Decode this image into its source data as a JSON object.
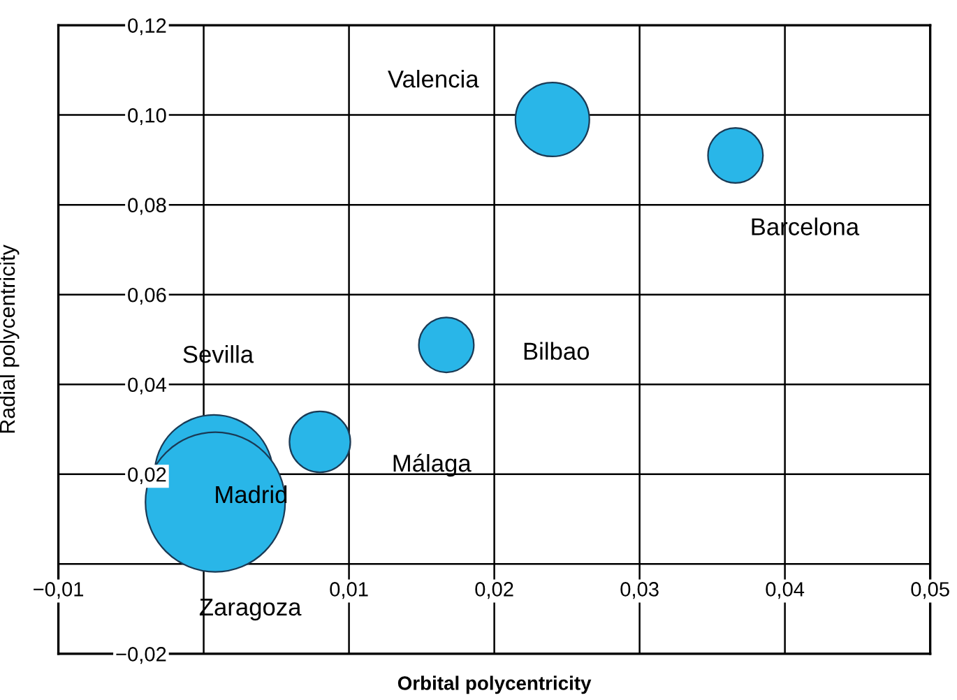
{
  "chart_data": {
    "type": "bubble",
    "xlabel": "Orbital polycentricity",
    "ylabel": "Radial polycentricity",
    "x": [
      0.0007,
      0.0008,
      0.024,
      0.0366,
      0.0167,
      0.008
    ],
    "values": [
      0.02,
      0.0138,
      0.099,
      0.091,
      0.0488,
      0.0272
    ],
    "sizes": [
      0.72,
      1,
      0.28,
      0.155,
      0.155,
      0.19
    ],
    "color": "#29b6e8",
    "xlim": [
      -0.01,
      0.05
    ],
    "xticks": [
      {
        "value": -0.01,
        "label": "−0,01"
      },
      {
        "value": 0,
        "label": null
      },
      {
        "value": 0.01,
        "label": "0,01"
      },
      {
        "value": 0.02,
        "label": "0,02"
      },
      {
        "value": 0.03,
        "label": "0,03"
      },
      {
        "value": 0.04,
        "label": "0,04"
      },
      {
        "value": 0.05,
        "label": "0,05"
      }
    ],
    "ylim": [
      -0.02,
      0.12
    ],
    "yticks": [
      {
        "value": -0.02,
        "label": "−0,02"
      },
      {
        "value": 0,
        "label": null
      },
      {
        "value": 0.02,
        "label": "0,02"
      },
      {
        "value": 0.04,
        "label": "0,04"
      },
      {
        "value": 0.06,
        "label": "0,06"
      },
      {
        "value": 0.08,
        "label": "0,08"
      },
      {
        "value": 0.1,
        "label": "0,10"
      },
      {
        "value": 0.12,
        "label": "0,12"
      }
    ],
    "grid": true,
    "annotations": [
      "Valencia",
      "Barcelona",
      "Bilbao",
      "Málaga",
      "Sevilla",
      "Madrid",
      "Zaragoza"
    ]
  }
}
